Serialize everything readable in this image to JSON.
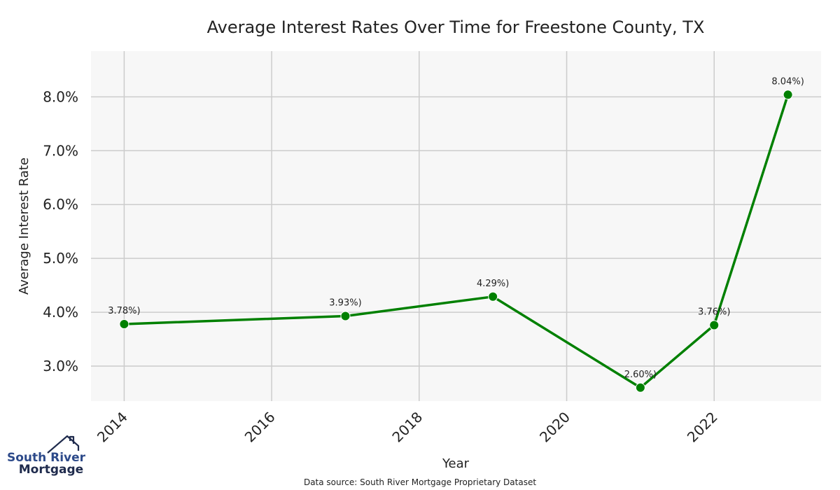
{
  "chart_data": {
    "type": "line",
    "title": "Average Interest Rates Over Time for Freestone County, TX",
    "xlabel": "Year",
    "ylabel": "Average Interest Rate",
    "xlim": [
      2013.55,
      2023.45
    ],
    "ylim": [
      2.35,
      8.85
    ],
    "x_ticks": [
      2014,
      2016,
      2018,
      2020,
      2022
    ],
    "x_tick_labels": [
      "2014",
      "2016",
      "2018",
      "2020",
      "2022"
    ],
    "y_ticks": [
      3.0,
      4.0,
      5.0,
      6.0,
      7.0,
      8.0
    ],
    "y_tick_labels": [
      "3.0%",
      "4.0%",
      "5.0%",
      "6.0%",
      "7.0%",
      "8.0%"
    ],
    "grid": true,
    "series": [
      {
        "color": "#008000",
        "points": [
          {
            "x": 2014,
            "y": 3.78,
            "label": "3.78%)"
          },
          {
            "x": 2017,
            "y": 3.93,
            "label": "3.93%)"
          },
          {
            "x": 2019,
            "y": 4.29,
            "label": "4.29%)"
          },
          {
            "x": 2021,
            "y": 2.6,
            "label": "2.60%)"
          },
          {
            "x": 2022,
            "y": 3.76,
            "label": "3.76%)"
          },
          {
            "x": 2023,
            "y": 8.04,
            "label": "8.04%)"
          }
        ]
      }
    ]
  },
  "footer": {
    "source": "Data source: South River Mortgage Proprietary Dataset"
  },
  "logo": {
    "line1": "South River",
    "line2": "Mortgage"
  },
  "colors": {
    "plot_background": "#f7f7f7",
    "grid": "#cccccc",
    "line": "#008000",
    "logo_blue": "#2d4a8a"
  }
}
